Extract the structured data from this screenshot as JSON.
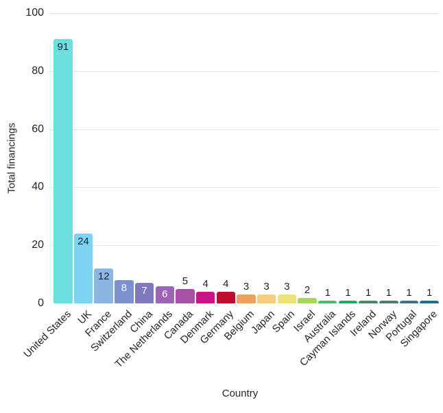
{
  "chart_data": {
    "type": "bar",
    "title": "",
    "xlabel": "Country",
    "ylabel": "Total financings",
    "ylim": [
      0,
      100
    ],
    "yticks": [
      0,
      20,
      40,
      60,
      80,
      100
    ],
    "grid": true,
    "legend_position": "none",
    "categories": [
      "United States",
      "UK",
      "France",
      "Switzerland",
      "China",
      "The Netherlands",
      "Canada",
      "Denmark",
      "Germany",
      "Belgium",
      "Japan",
      "Spain",
      "Israel",
      "Australia",
      "Cayman Islands",
      "Ireland",
      "Norway",
      "Portugal",
      "Singapore"
    ],
    "values": [
      91,
      24,
      12,
      8,
      7,
      6,
      5,
      4,
      4,
      3,
      3,
      3,
      2,
      1,
      1,
      1,
      1,
      1,
      1
    ],
    "bar_colors": [
      "#6ce0df",
      "#7dd4f2",
      "#8cb5e2",
      "#7b90cc",
      "#7f7abf",
      "#9c64b2",
      "#a951a5",
      "#c71585",
      "#bb0f2f",
      "#eda05f",
      "#f6cd7e",
      "#ece27a",
      "#a6d75c",
      "#4eba6b",
      "#23a563",
      "#48896a",
      "#50796e",
      "#3a7389",
      "#1e6b9e"
    ],
    "value_labels_shown": true
  },
  "colors": {
    "background": "#ffffff",
    "gridline": "#e4e4e4",
    "axis_text": "#20252b",
    "value_label_dark": "#18222c",
    "value_label_light": "#ffffff"
  }
}
